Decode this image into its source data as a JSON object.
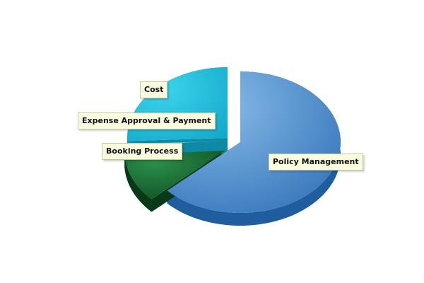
{
  "chart_data": {
    "type": "pie",
    "title": "",
    "style": "3d-exploded",
    "slices": [
      {
        "label": "Policy Management",
        "value": 63,
        "color": "#5b98d6",
        "exploded": false
      },
      {
        "label": "Booking Process",
        "value": 11,
        "color": "#1b7a3c",
        "exploded": true
      },
      {
        "label": "Expense Approval & Payment",
        "value": 0.3,
        "color": "#3fb8a2",
        "exploded": true
      },
      {
        "label": "Cost",
        "value": 25.7,
        "color": "#22c2dc",
        "exploded": true
      }
    ]
  }
}
